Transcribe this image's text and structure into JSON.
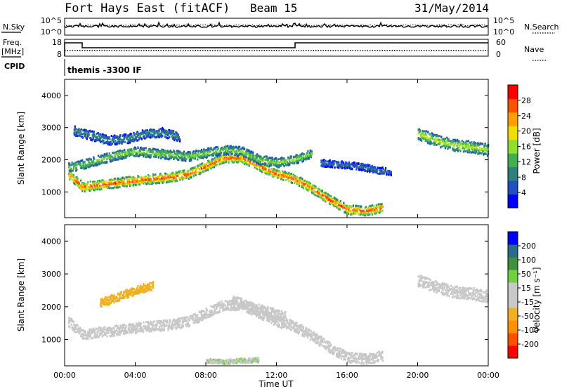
{
  "header": {
    "title": "Fort Hays East (fitACF)",
    "beam": "Beam 15",
    "date": "31/May/2014"
  },
  "top_panels": {
    "nsky_label": "N.Sky",
    "nsearch_label": "N.Search",
    "nsky_ticks": [
      "10^5",
      "10^0"
    ],
    "nsearch_ticks": [
      "10^5",
      "10^0"
    ],
    "freq_label_line1": "Freq.",
    "freq_label_line2": "[MHz]",
    "freq_ticks": [
      "18",
      "8"
    ],
    "nave_label": "Nave",
    "nave_ticks": [
      "60",
      "0"
    ],
    "cpid_label": "CPID",
    "cpid_text": "themis -3300 IF"
  },
  "colors": {
    "power_scale": [
      "#0000ff",
      "#1f4fc0",
      "#2f7f7f",
      "#3faf50",
      "#8fdf30",
      "#efdf00",
      "#ffa000",
      "#ff5000",
      "#ff0000"
    ],
    "velocity_scale": [
      "#ff0000",
      "#ff5000",
      "#ff9000",
      "#f0b020",
      "#c8c8c8",
      "#c8c8c8",
      "#70d040",
      "#3f8f3f",
      "#2a6a8a",
      "#0000ff"
    ]
  },
  "chart_data": [
    {
      "type": "heatmap",
      "name": "power",
      "ylabel": "Slant Range [km]",
      "ylim": [
        200,
        4500
      ],
      "yticks": [
        "1000",
        "2000",
        "3000",
        "4000"
      ],
      "colorbar_label": "Power [dB]",
      "colorbar_ticks": [
        "4",
        "8",
        "12",
        "16",
        "20",
        "24",
        "28"
      ],
      "colorbar_range": [
        0,
        32
      ],
      "bands": [
        {
          "t": [
            0.2,
            1.0,
            2.5,
            4.0,
            6.0,
            7.0,
            8.0,
            9.0,
            10.0,
            11.0,
            12.0,
            13.0,
            14.0,
            15.0,
            16.0,
            17.0,
            18.0
          ],
          "r": [
            1550,
            1150,
            1250,
            1350,
            1450,
            1550,
            1800,
            2050,
            2050,
            1800,
            1550,
            1400,
            1100,
            750,
            450,
            400,
            500
          ],
          "width": 120,
          "power": 28
        },
        {
          "t": [
            0.2,
            1.0,
            2.0,
            3.0,
            4.0,
            5.0,
            6.0,
            7.0,
            8.0,
            9.0,
            10.0,
            11.0,
            12.0,
            13.0,
            14.0
          ],
          "r": [
            1750,
            1850,
            2000,
            2150,
            2250,
            2200,
            2150,
            2100,
            2200,
            2300,
            2250,
            2000,
            1900,
            2000,
            2200
          ],
          "width": 120,
          "power": 16
        },
        {
          "t": [
            0.5,
            1.5,
            2.5,
            3.5,
            4.5,
            5.5,
            6.5
          ],
          "r": [
            2900,
            2750,
            2600,
            2650,
            2800,
            2850,
            2700
          ],
          "width": 120,
          "power": 10
        },
        {
          "t": [
            20.0,
            21.0,
            22.0,
            23.0,
            24.0
          ],
          "r": [
            2800,
            2600,
            2450,
            2400,
            2300
          ],
          "width": 150,
          "power": 18
        },
        {
          "t": [
            14.5,
            15.5,
            16.5,
            17.5,
            18.5
          ],
          "r": [
            1900,
            1850,
            1800,
            1700,
            1600
          ],
          "width": 90,
          "power": 8
        }
      ]
    },
    {
      "type": "heatmap",
      "name": "velocity",
      "ylabel": "Slant Range [km]",
      "ylim": [
        200,
        4500
      ],
      "yticks": [
        "1000",
        "2000",
        "3000",
        "4000"
      ],
      "xlabel": "Time UT",
      "xticks": [
        "00:00",
        "04:00",
        "08:00",
        "12:00",
        "16:00",
        "20:00",
        "00:00"
      ],
      "xlim": [
        0,
        24
      ],
      "colorbar_label": "Velocity [m s⁻¹]",
      "colorbar_ticks": [
        "200",
        "100",
        "50",
        "15",
        "-15",
        "-50",
        "-100",
        "-200"
      ],
      "colorbar_range": [
        -250,
        250
      ],
      "bands": [
        {
          "t": [
            0.2,
            1.0,
            2.5,
            4.0,
            6.0,
            7.0,
            8.0,
            9.0,
            10.0,
            11.0,
            12.0,
            13.0,
            14.0,
            15.0,
            16.0,
            17.0,
            18.0
          ],
          "r": [
            1550,
            1150,
            1250,
            1350,
            1450,
            1550,
            1800,
            2050,
            2050,
            1800,
            1550,
            1400,
            1100,
            750,
            450,
            400,
            500
          ],
          "width": 130,
          "velocity": 0
        },
        {
          "t": [
            2.0,
            3.0,
            4.0,
            5.0
          ],
          "r": [
            2100,
            2300,
            2500,
            2650
          ],
          "width": 110,
          "velocity": -60
        },
        {
          "t": [
            9.5,
            10.5,
            11.5,
            12.5
          ],
          "r": [
            2200,
            2000,
            1850,
            1700
          ],
          "width": 120,
          "velocity": 40
        },
        {
          "t": [
            8.0,
            9.0,
            10.0,
            11.0
          ],
          "r": [
            350,
            320,
            350,
            380
          ],
          "width": 60,
          "velocity": 45
        },
        {
          "t": [
            20.0,
            21.0,
            22.0,
            23.0,
            24.0
          ],
          "r": [
            2800,
            2600,
            2450,
            2400,
            2300
          ],
          "width": 150,
          "velocity": 0
        }
      ]
    }
  ]
}
